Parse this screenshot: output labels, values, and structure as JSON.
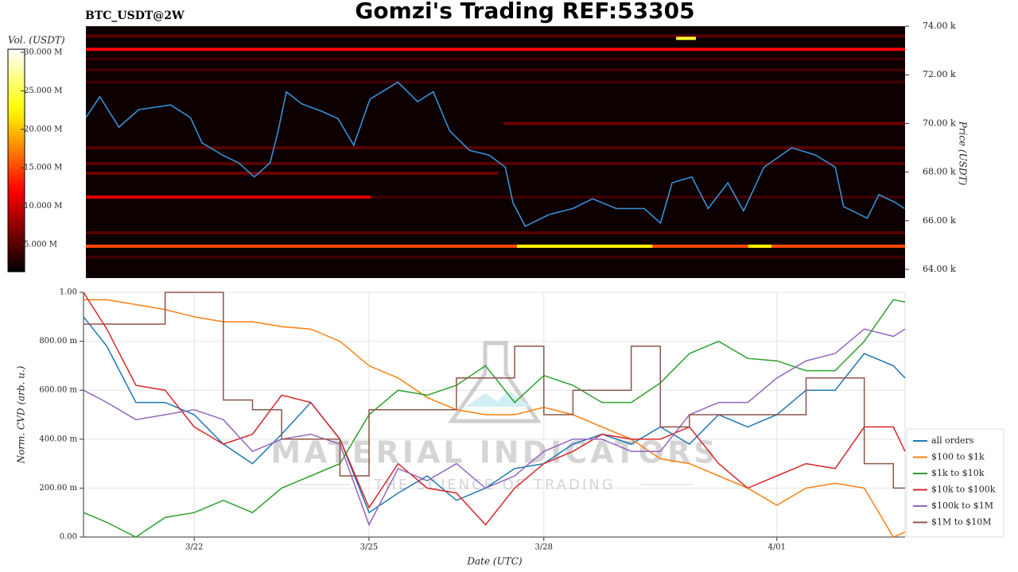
{
  "chart_data": [
    {
      "type": "heatmap",
      "title": "Gomzi's Trading REF:53305",
      "label": "BTC_USDT@2W",
      "ylabel": "Price (USDT)",
      "colorbar_label": "Vol. (USDT)",
      "colormap": "hot",
      "clim": [
        1500000,
        30400000
      ],
      "cticks": [
        {
          "value": 5000000,
          "label": "5.000 M"
        },
        {
          "value": 10000000,
          "label": "10.000 M"
        },
        {
          "value": 15000000,
          "label": "15.000 M"
        },
        {
          "value": 20000000,
          "label": "20.000 M"
        },
        {
          "value": 25000000,
          "label": "25.000 M"
        },
        {
          "value": 30000000,
          "label": "30.000 M"
        }
      ],
      "xlim": [
        0.1,
        14.2
      ],
      "ylim": [
        63640,
        74000
      ],
      "yticks": [
        {
          "value": 64000,
          "label": "64.00 k"
        },
        {
          "value": 66000,
          "label": "66.00 k"
        },
        {
          "value": 68000,
          "label": "68.00 k"
        },
        {
          "value": 70000,
          "label": "70.00 k"
        },
        {
          "value": 72000,
          "label": "72.00 k"
        },
        {
          "value": 74000,
          "label": "74.00 k"
        }
      ],
      "bands": [
        {
          "price": 73600,
          "from": 0.1,
          "to": 14.2,
          "volume": 5000000
        },
        {
          "price": 73500,
          "from": 10.26,
          "to": 10.6,
          "volume": 24000000
        },
        {
          "price": 73050,
          "from": 0.1,
          "to": 14.2,
          "volume": 12000000
        },
        {
          "price": 72650,
          "from": 0.1,
          "to": 14.2,
          "volume": 4000000
        },
        {
          "price": 72200,
          "from": 0.1,
          "to": 14.2,
          "volume": 4000000
        },
        {
          "price": 71700,
          "from": 0.1,
          "to": 14.2,
          "volume": 4000000
        },
        {
          "price": 70000,
          "from": 7.3,
          "to": 14.2,
          "volume": 6000000
        },
        {
          "price": 69000,
          "from": 0.1,
          "to": 14.2,
          "volume": 5000000
        },
        {
          "price": 68350,
          "from": 0.1,
          "to": 14.2,
          "volume": 5000000
        },
        {
          "price": 67950,
          "from": 0.1,
          "to": 7.2,
          "volume": 6000000
        },
        {
          "price": 66970,
          "from": 0.1,
          "to": 5.0,
          "volume": 11000000
        },
        {
          "price": 66970,
          "from": 5.0,
          "to": 14.2,
          "volume": 4000000
        },
        {
          "price": 65500,
          "from": 0.1,
          "to": 14.2,
          "volume": 5000000
        },
        {
          "price": 64950,
          "from": 0.1,
          "to": 14.2,
          "volume": 15000000
        },
        {
          "price": 64950,
          "from": 7.52,
          "to": 9.85,
          "volume": 22000000
        },
        {
          "price": 64950,
          "from": 11.5,
          "to": 11.9,
          "volume": 22000000
        },
        {
          "price": 64500,
          "from": 0.1,
          "to": 14.2,
          "volume": 4000000
        }
      ],
      "line_color": "#3a8fd6",
      "x": [
        0.1,
        0.34,
        0.67,
        1.01,
        1.56,
        1.9,
        2.1,
        2.45,
        2.73,
        3.0,
        3.27,
        3.41,
        3.55,
        3.82,
        4.16,
        4.44,
        4.71,
        4.99,
        5.47,
        5.81,
        6.08,
        6.36,
        6.7,
        7.04,
        7.32,
        7.45,
        7.66,
        8.07,
        8.48,
        8.82,
        9.23,
        9.71,
        9.99,
        10.19,
        10.53,
        10.81,
        11.15,
        11.42,
        11.77,
        12.25,
        12.66,
        13.0,
        13.14,
        13.55,
        13.75,
        14.03,
        14.19
      ],
      "values": [
        70240,
        71100,
        69850,
        70570,
        70760,
        70240,
        69200,
        68700,
        68380,
        67800,
        68380,
        69700,
        71300,
        70800,
        70500,
        70200,
        69100,
        71000,
        71700,
        70900,
        71300,
        69700,
        68900,
        68700,
        68200,
        66750,
        65770,
        66250,
        66500,
        66900,
        66500,
        66500,
        65900,
        67560,
        67800,
        66500,
        67560,
        66400,
        68200,
        69000,
        68700,
        68200,
        66580,
        66100,
        67070,
        66750,
        66500
      ]
    },
    {
      "type": "line",
      "xlabel": "Date (UTC)",
      "ylabel": "Norm. CVD (arb. u.)",
      "xlim": [
        0.1,
        14.2
      ],
      "xticks": [
        {
          "value": 2,
          "label": "3/22"
        },
        {
          "value": 5,
          "label": "3/25"
        },
        {
          "value": 8,
          "label": "3/28"
        },
        {
          "value": 12,
          "label": "4/01"
        }
      ],
      "ylim": [
        0,
        1
      ],
      "yticks": [
        {
          "value": 0,
          "label": "0.00"
        },
        {
          "value": 0.2,
          "label": "200.00 m"
        },
        {
          "value": 0.4,
          "label": "400.00 m"
        },
        {
          "value": 0.6,
          "label": "600.00 m"
        },
        {
          "value": 0.8,
          "label": "800.00 m"
        },
        {
          "value": 1,
          "label": "1.00"
        }
      ],
      "grid": true,
      "legend": "lower right",
      "watermark": [
        "MATERIAL INDICATORS",
        "THE SCIENCE OF TRADING"
      ],
      "x": [
        0.1,
        0.5,
        1,
        1.5,
        2,
        2.5,
        3,
        3.5,
        4,
        4.5,
        5,
        5.5,
        6,
        6.5,
        7,
        7.5,
        8,
        8.5,
        9,
        9.5,
        10,
        10.5,
        11,
        11.5,
        12,
        12.5,
        13,
        13.5,
        14,
        14.2
      ],
      "series": [
        {
          "name": "all orders",
          "color": "#1f77b4",
          "values": [
            0.9,
            0.78,
            0.55,
            0.55,
            0.5,
            0.38,
            0.3,
            0.42,
            0.55,
            0.4,
            0.1,
            0.18,
            0.25,
            0.15,
            0.2,
            0.28,
            0.3,
            0.38,
            0.42,
            0.38,
            0.45,
            0.38,
            0.5,
            0.45,
            0.5,
            0.6,
            0.6,
            0.75,
            0.7,
            0.65
          ]
        },
        {
          "name": "$100 to $1k",
          "color": "#ff7f0e",
          "values": [
            0.97,
            0.97,
            0.95,
            0.93,
            0.9,
            0.88,
            0.88,
            0.86,
            0.85,
            0.8,
            0.7,
            0.65,
            0.57,
            0.52,
            0.5,
            0.5,
            0.53,
            0.5,
            0.45,
            0.4,
            0.32,
            0.3,
            0.25,
            0.2,
            0.13,
            0.2,
            0.22,
            0.2,
            0.0,
            0.02
          ]
        },
        {
          "name": "$1k to $10k",
          "color": "#2ca02c",
          "values": [
            0.1,
            0.06,
            0.0,
            0.08,
            0.1,
            0.15,
            0.1,
            0.2,
            0.25,
            0.3,
            0.5,
            0.6,
            0.58,
            0.62,
            0.7,
            0.55,
            0.66,
            0.62,
            0.55,
            0.55,
            0.63,
            0.75,
            0.8,
            0.73,
            0.72,
            0.68,
            0.68,
            0.8,
            0.97,
            0.96
          ]
        },
        {
          "name": "$10k to $100k",
          "color": "#d62728",
          "values": [
            1.0,
            0.85,
            0.62,
            0.6,
            0.45,
            0.38,
            0.42,
            0.58,
            0.55,
            0.4,
            0.12,
            0.3,
            0.2,
            0.18,
            0.05,
            0.2,
            0.3,
            0.35,
            0.42,
            0.4,
            0.4,
            0.45,
            0.3,
            0.2,
            0.25,
            0.3,
            0.28,
            0.45,
            0.45,
            0.35
          ]
        },
        {
          "name": "$100k to $1M",
          "color": "#9467bd",
          "values": [
            0.6,
            0.55,
            0.48,
            0.5,
            0.52,
            0.48,
            0.35,
            0.4,
            0.42,
            0.38,
            0.05,
            0.28,
            0.23,
            0.3,
            0.2,
            0.25,
            0.35,
            0.4,
            0.4,
            0.35,
            0.35,
            0.5,
            0.55,
            0.55,
            0.65,
            0.72,
            0.75,
            0.85,
            0.82,
            0.85
          ]
        },
        {
          "name": "$1M to $10M",
          "color": "#8c564b",
          "drawstyle": "steps-post",
          "values": [
            0.87,
            0.87,
            0.87,
            1.0,
            1.0,
            0.56,
            0.52,
            0.4,
            0.4,
            0.25,
            0.52,
            0.52,
            0.52,
            0.65,
            0.65,
            0.78,
            0.5,
            0.6,
            0.6,
            0.78,
            0.45,
            0.5,
            0.5,
            0.5,
            0.5,
            0.65,
            0.65,
            0.3,
            0.2,
            0.2
          ]
        }
      ]
    }
  ]
}
